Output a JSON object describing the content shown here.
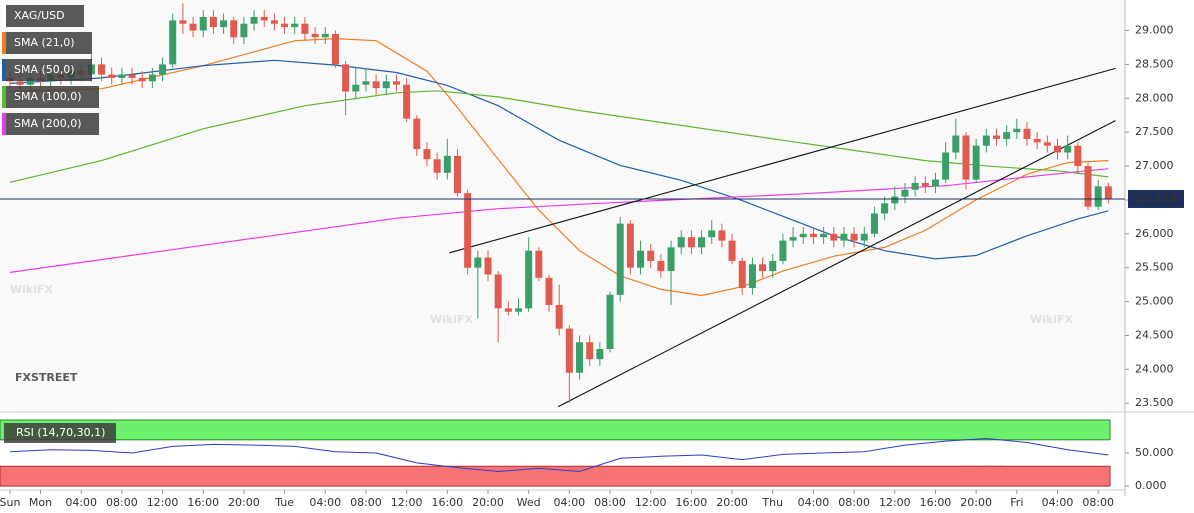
{
  "chart_data": {
    "type": "candlestick",
    "name": "XAG/USD",
    "up_color": "#3a9e68",
    "down_color": "#e05a4f",
    "categories": [
      "Sun",
      null,
      null,
      "Mon",
      null,
      null,
      null,
      "04:00",
      null,
      null,
      null,
      "08:00",
      null,
      null,
      null,
      "12:00",
      null,
      null,
      null,
      "16:00",
      null,
      null,
      null,
      "20:00",
      null,
      null,
      null,
      "Tue",
      null,
      null,
      null,
      "04:00",
      null,
      null,
      null,
      "08:00",
      null,
      null,
      null,
      "12:00",
      null,
      null,
      null,
      "16:00",
      null,
      null,
      null,
      "20:00",
      null,
      null,
      null,
      "Wed",
      null,
      null,
      null,
      "04:00",
      null,
      null,
      null,
      "08:00",
      null,
      null,
      null,
      "12:00",
      null,
      null,
      null,
      "16:00",
      null,
      null,
      null,
      "20:00",
      null,
      null,
      null,
      "Thu",
      null,
      null,
      null,
      "04:00",
      null,
      null,
      null,
      "08:00",
      null,
      null,
      null,
      "12:00",
      null,
      null,
      null,
      "16:00",
      null,
      null,
      null,
      "20:00",
      null,
      null,
      null,
      "Fri",
      null,
      null,
      null,
      "04:00",
      null,
      null,
      null,
      "08:00",
      null
    ],
    "open": [
      28.3,
      28.25,
      28.2,
      28.3,
      28.25,
      28.35,
      28.3,
      28.4,
      28.35,
      28.5,
      28.35,
      28.3,
      28.35,
      28.3,
      28.25,
      28.35,
      28.5,
      29.15,
      29.1,
      29.0,
      29.2,
      29.05,
      29.15,
      28.9,
      29.1,
      29.2,
      29.15,
      29.1,
      29.05,
      29.1,
      28.95,
      28.9,
      28.95,
      28.5,
      28.1,
      28.2,
      28.25,
      28.15,
      28.25,
      28.2,
      27.7,
      27.25,
      27.1,
      26.9,
      27.15,
      26.6,
      25.5,
      25.65,
      25.4,
      24.9,
      24.85,
      24.9,
      25.75,
      25.35,
      24.95,
      24.6,
      23.95,
      24.4,
      24.15,
      24.3,
      25.1,
      26.15,
      25.5,
      25.75,
      25.6,
      25.45,
      25.8,
      25.95,
      25.8,
      25.95,
      26.05,
      25.9,
      25.6,
      25.2,
      25.55,
      25.45,
      25.6,
      25.9,
      25.95,
      26.0,
      25.95,
      26.0,
      25.9,
      26.0,
      25.9,
      26.0,
      26.3,
      26.45,
      26.55,
      26.65,
      26.75,
      26.7,
      26.8,
      27.2,
      27.45,
      26.8,
      27.3,
      27.45,
      27.4,
      27.5,
      27.55,
      27.4,
      27.35,
      27.3,
      27.2,
      27.3,
      27.0,
      26.4,
      26.7
    ],
    "high": [
      28.4,
      28.35,
      28.4,
      28.4,
      28.45,
      28.45,
      28.5,
      28.5,
      28.65,
      28.6,
      28.45,
      28.45,
      28.45,
      28.4,
      28.45,
      28.6,
      29.25,
      29.4,
      29.2,
      29.3,
      29.3,
      29.25,
      29.2,
      29.2,
      29.3,
      29.3,
      29.25,
      29.2,
      29.2,
      29.2,
      29.05,
      29.05,
      29.0,
      28.55,
      28.45,
      28.45,
      28.35,
      28.35,
      28.35,
      28.3,
      27.75,
      27.35,
      27.2,
      27.4,
      27.25,
      26.65,
      25.75,
      25.75,
      25.45,
      25.0,
      25.05,
      25.95,
      25.8,
      25.4,
      25.25,
      24.65,
      24.5,
      24.5,
      24.4,
      25.15,
      26.25,
      26.2,
      25.9,
      25.85,
      25.7,
      25.9,
      26.05,
      26.05,
      26.05,
      26.2,
      26.15,
      26.0,
      25.65,
      25.65,
      25.65,
      25.7,
      26.0,
      26.1,
      26.1,
      26.1,
      26.1,
      26.1,
      26.1,
      26.1,
      26.1,
      26.4,
      26.55,
      26.7,
      26.75,
      26.85,
      26.85,
      26.9,
      27.35,
      27.7,
      27.5,
      27.4,
      27.55,
      27.55,
      27.6,
      27.7,
      27.65,
      27.5,
      27.45,
      27.4,
      27.45,
      27.35,
      27.05,
      26.8,
      26.75
    ],
    "low": [
      28.15,
      28.1,
      28.1,
      28.15,
      28.15,
      28.2,
      28.2,
      28.25,
      28.25,
      28.25,
      28.2,
      28.2,
      28.2,
      28.15,
      28.15,
      28.25,
      28.45,
      28.95,
      28.9,
      28.9,
      28.95,
      28.95,
      28.8,
      28.8,
      29.0,
      29.05,
      29.0,
      28.95,
      28.95,
      28.85,
      28.8,
      28.8,
      28.45,
      27.75,
      28.0,
      28.1,
      28.05,
      28.05,
      28.1,
      27.65,
      27.15,
      27.0,
      26.8,
      26.8,
      26.55,
      25.4,
      24.75,
      25.3,
      24.4,
      24.8,
      24.8,
      24.85,
      25.3,
      24.85,
      24.5,
      23.5,
      23.85,
      24.05,
      24.05,
      24.25,
      25.0,
      25.4,
      25.4,
      25.5,
      25.35,
      24.95,
      25.7,
      25.7,
      25.7,
      25.85,
      25.8,
      25.55,
      25.1,
      25.1,
      25.35,
      25.35,
      25.55,
      25.8,
      25.85,
      25.85,
      25.85,
      25.8,
      25.8,
      25.8,
      25.8,
      25.95,
      26.2,
      26.35,
      26.45,
      26.55,
      26.6,
      26.6,
      26.75,
      27.1,
      26.65,
      26.75,
      27.2,
      27.3,
      27.3,
      27.4,
      27.3,
      27.25,
      27.2,
      27.1,
      27.1,
      26.9,
      26.35,
      26.35,
      26.45
    ],
    "close": [
      28.25,
      28.2,
      28.3,
      28.25,
      28.35,
      28.3,
      28.4,
      28.35,
      28.5,
      28.35,
      28.3,
      28.35,
      28.3,
      28.25,
      28.35,
      28.5,
      29.15,
      29.1,
      29.0,
      29.2,
      29.05,
      29.15,
      28.9,
      29.1,
      29.2,
      29.15,
      29.1,
      29.05,
      29.1,
      28.95,
      28.9,
      28.95,
      28.5,
      28.1,
      28.2,
      28.25,
      28.15,
      28.25,
      28.2,
      27.7,
      27.25,
      27.1,
      26.9,
      27.15,
      26.6,
      25.5,
      25.65,
      25.4,
      24.9,
      24.85,
      24.9,
      25.75,
      25.35,
      24.95,
      24.6,
      23.95,
      24.4,
      24.15,
      24.3,
      25.1,
      26.15,
      25.5,
      25.75,
      25.6,
      25.45,
      25.8,
      25.95,
      25.8,
      25.95,
      26.05,
      25.9,
      25.6,
      25.2,
      25.55,
      25.45,
      25.6,
      25.9,
      25.95,
      26.0,
      25.95,
      26.0,
      25.9,
      26.0,
      25.9,
      26.0,
      26.3,
      26.45,
      26.55,
      26.65,
      26.75,
      26.7,
      26.8,
      27.2,
      27.45,
      26.8,
      27.3,
      27.45,
      27.4,
      27.5,
      27.55,
      27.4,
      27.35,
      27.3,
      27.2,
      27.3,
      27.0,
      26.4,
      26.7,
      26.51
    ],
    "series": [
      {
        "name": "SMA (21,0)",
        "color": "#f07d1f",
        "x": [
          0,
          9,
          19,
          28,
          32,
          36,
          41,
          43,
          48,
          52,
          56,
          60,
          64,
          68,
          72,
          76,
          81,
          86,
          90,
          95,
          100,
          104,
          108
        ],
        "values": [
          28.1,
          28.14,
          28.48,
          28.85,
          28.88,
          28.85,
          28.4,
          28.05,
          27.1,
          26.35,
          25.75,
          25.38,
          25.18,
          25.09,
          25.22,
          25.45,
          25.67,
          25.8,
          26.05,
          26.5,
          26.88,
          27.05,
          27.08
        ]
      },
      {
        "name": "SMA (50,0)",
        "color": "#1f5fa8",
        "x": [
          0,
          9,
          19,
          26,
          32,
          38,
          43,
          48,
          54,
          60,
          66,
          72,
          77,
          81,
          86,
          91,
          95,
          100,
          105,
          108
        ],
        "values": [
          28.22,
          28.3,
          28.48,
          28.56,
          28.49,
          28.38,
          28.19,
          27.89,
          27.38,
          27.01,
          26.79,
          26.49,
          26.2,
          25.97,
          25.75,
          25.63,
          25.68,
          25.97,
          26.22,
          26.34
        ]
      },
      {
        "name": "SMA (100,0)",
        "color": "#5cb82e",
        "x": [
          0,
          9,
          19,
          29,
          38,
          42,
          48,
          56,
          66,
          76,
          83,
          90,
          97,
          103,
          108
        ],
        "values": [
          26.76,
          27.08,
          27.55,
          27.89,
          28.08,
          28.11,
          28.02,
          27.82,
          27.6,
          27.38,
          27.23,
          27.08,
          26.99,
          26.93,
          26.84
        ]
      },
      {
        "name": "SMA (200,0)",
        "color": "#e83ce8",
        "x": [
          0,
          19,
          38,
          48,
          58,
          78,
          92,
          102,
          108
        ],
        "values": [
          25.43,
          25.83,
          26.23,
          26.37,
          26.45,
          26.59,
          26.71,
          26.87,
          26.96
        ]
      }
    ],
    "trendlines": [
      {
        "color": "#111111",
        "x": [
          43.2,
          108.7
        ],
        "values": [
          25.72,
          28.44
        ]
      },
      {
        "color": "#111111",
        "x": [
          53.9,
          108.7
        ],
        "values": [
          23.45,
          27.67
        ]
      }
    ],
    "last_price": 26.514,
    "last_price_color": "#1d2f5a",
    "ylim": [
      23.4,
      29.45
    ],
    "yticks": [
      {
        "value": 23.5,
        "label": "23.500"
      },
      {
        "value": 24,
        "label": "24.000"
      },
      {
        "value": 24.5,
        "label": "24.500"
      },
      {
        "value": 25,
        "label": "25.000"
      },
      {
        "value": 25.5,
        "label": "25.500"
      },
      {
        "value": 26,
        "label": "26.000"
      },
      {
        "value": 26.5,
        "label": "26.500"
      },
      {
        "value": 27,
        "label": "27.000"
      },
      {
        "value": 27.5,
        "label": "27.500"
      },
      {
        "value": 28,
        "label": "28.000"
      },
      {
        "value": 28.5,
        "label": "28.500"
      },
      {
        "value": 29,
        "label": "29.000"
      }
    ],
    "watermarks": [
      "FXSTREET",
      "WikiFX"
    ],
    "rsi": {
      "name": "RSI (14,70,30,1)",
      "color": "#2440c8",
      "x": [
        0,
        4,
        8,
        12,
        16,
        20,
        24,
        28,
        32,
        36,
        40,
        44,
        48,
        52,
        56,
        60,
        64,
        68,
        72,
        76,
        80,
        84,
        88,
        92,
        96,
        100,
        104,
        108
      ],
      "values": [
        52,
        55,
        54,
        50,
        60,
        63,
        62,
        60,
        52,
        50,
        35,
        28,
        22,
        27,
        22,
        42,
        45,
        47,
        40,
        48,
        50,
        52,
        62,
        68,
        72,
        66,
        55,
        47
      ],
      "overbought": 70,
      "oversold": 30,
      "overbought_color": "#6df06d",
      "oversold_color": "#f77272",
      "ylim": [
        -15,
        103
      ],
      "yticks": [
        {
          "value": 0,
          "label": "0.000"
        },
        {
          "value": 50,
          "label": "50.000"
        }
      ]
    }
  }
}
